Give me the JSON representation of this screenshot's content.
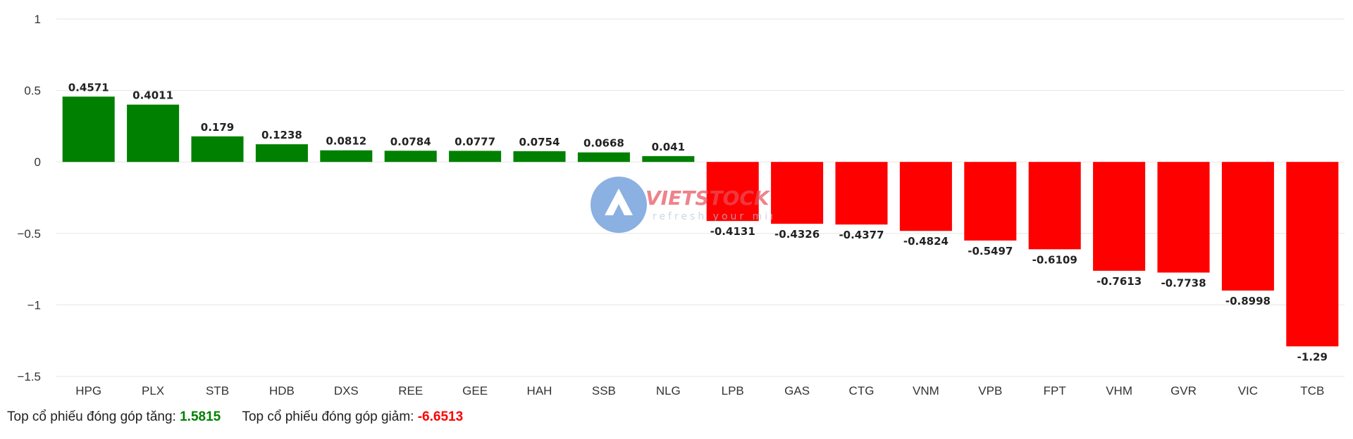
{
  "chart_data": {
    "type": "bar",
    "categories": [
      "HPG",
      "PLX",
      "STB",
      "HDB",
      "DXS",
      "REE",
      "GEE",
      "HAH",
      "SSB",
      "NLG",
      "LPB",
      "GAS",
      "CTG",
      "VNM",
      "VPB",
      "FPT",
      "VHM",
      "GVR",
      "VIC",
      "TCB"
    ],
    "values": [
      0.4571,
      0.4011,
      0.179,
      0.1238,
      0.0812,
      0.0784,
      0.0777,
      0.0754,
      0.0668,
      0.041,
      -0.4131,
      -0.4326,
      -0.4377,
      -0.4824,
      -0.5497,
      -0.6109,
      -0.7613,
      -0.7738,
      -0.8998,
      -1.29
    ],
    "value_labels": [
      "0.4571",
      "0.4011",
      "0.179",
      "0.1238",
      "0.0812",
      "0.0784",
      "0.0777",
      "0.0754",
      "0.0668",
      "0.041",
      "-0.4131",
      "-0.4326",
      "-0.4377",
      "-0.4824",
      "-0.5497",
      "-0.6109",
      "-0.7613",
      "-0.7738",
      "-0.8998",
      "-1.29"
    ],
    "yticks": [
      1,
      0.5,
      0,
      -0.5,
      -1,
      -1.5
    ],
    "ytick_labels": [
      "1",
      "0.5",
      "0",
      "−0.5",
      "−1",
      "−1.5"
    ],
    "ylim": [
      -1.5,
      1
    ],
    "grid": true,
    "legend": "none",
    "colors": {
      "positive": "#008000",
      "negative": "#ff0000"
    }
  },
  "summary": {
    "up_label": "Top cổ phiếu đóng góp tăng:",
    "up_value": "1.5815",
    "up_color": "#008000",
    "down_label": "Top cổ phiếu đóng góp giảm:",
    "down_value": "-6.6513",
    "down_color": "#ff0000"
  },
  "watermark": {
    "brand": "VIETSTOCK",
    "tagline": "refresh your mind"
  }
}
